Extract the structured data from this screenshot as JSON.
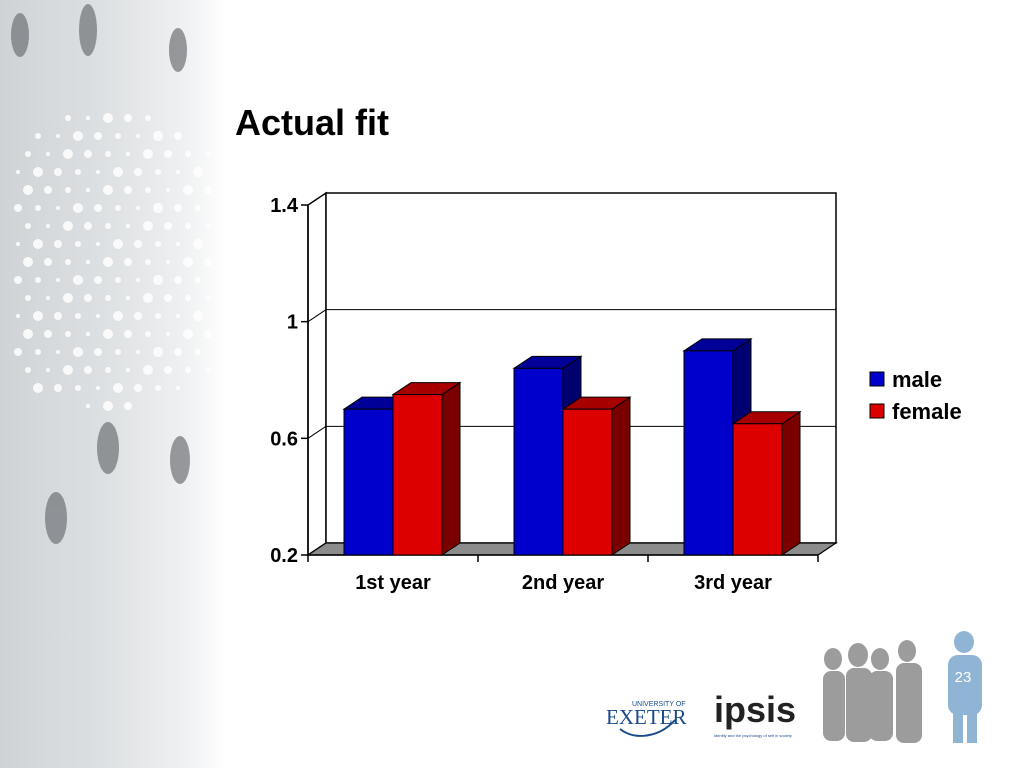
{
  "slide": {
    "title": "Actual fit",
    "page_number": "23"
  },
  "logos": {
    "exeter_small": "UNIVERSITY OF",
    "exeter_name": "EXETER",
    "ipsis_name": "ipsis",
    "ipsis_tagline": "identity and the psychology of self in society"
  },
  "colors": {
    "male": "#0000cc",
    "female": "#dd0000"
  },
  "chart_data": {
    "type": "bar",
    "title": "",
    "xlabel": "",
    "ylabel": "",
    "categories": [
      "1st year",
      "2nd year",
      "3rd year"
    ],
    "series": [
      {
        "name": "male",
        "values": [
          0.7,
          0.84,
          0.9
        ]
      },
      {
        "name": "female",
        "values": [
          0.75,
          0.7,
          0.65
        ]
      }
    ],
    "ylim": [
      0.2,
      1.4
    ],
    "yticks": [
      0.2,
      0.6,
      1,
      1.4
    ],
    "ytick_labels": [
      "0.2",
      "0.6",
      "1",
      "1.4"
    ],
    "grid": true,
    "three_d": true,
    "legend_position": "right"
  }
}
